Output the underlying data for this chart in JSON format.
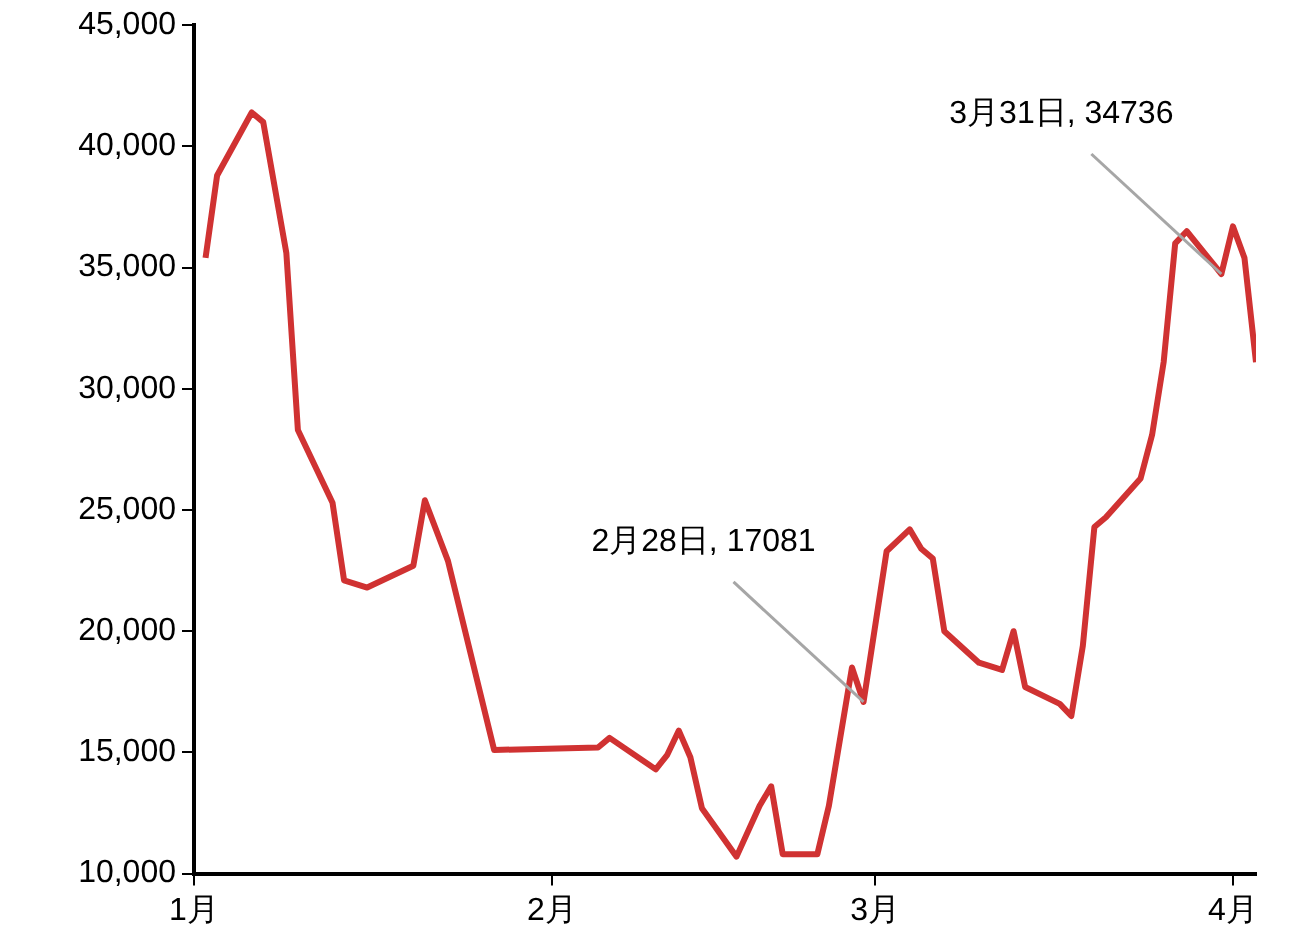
{
  "chart_data": {
    "type": "line",
    "x": [
      "--01-02",
      "--01-03",
      "--01-06",
      "--01-07",
      "--01-09",
      "--01-10",
      "--01-13",
      "--01-14",
      "--01-16",
      "--01-20",
      "--01-21",
      "--01-23",
      "--01-27",
      "--02-05",
      "--02-06",
      "--02-10",
      "--02-11",
      "--02-12",
      "--02-13",
      "--02-14",
      "--02-17",
      "--02-19",
      "--02-20",
      "--02-21",
      "--02-24",
      "--02-25",
      "--02-27",
      "--02-28",
      "--03-02",
      "--03-04",
      "--03-05",
      "--03-06",
      "--03-07",
      "--03-10",
      "--03-12",
      "--03-13",
      "--03-14",
      "--03-17",
      "--03-18",
      "--03-19",
      "--03-20",
      "--03-21",
      "--03-24",
      "--03-25",
      "--03-26",
      "--03-27",
      "--03-28",
      "--03-31",
      "--04-01",
      "--04-02",
      "--04-03"
    ],
    "series": [
      {
        "color": "#d03232",
        "values": [
          35400,
          38800,
          41400,
          41000,
          35600,
          28300,
          25300,
          22100,
          21800,
          22700,
          25400,
          22900,
          15100,
          15200,
          15600,
          14300,
          14900,
          15900,
          14800,
          12700,
          10700,
          12800,
          13600,
          10800,
          10800,
          12800,
          18500,
          17081,
          23300,
          24200,
          23400,
          23000,
          20000,
          18700,
          18400,
          20000,
          17700,
          17000,
          16500,
          19400,
          24300,
          24700,
          26300,
          28100,
          31100,
          36000,
          36500,
          34736,
          36700,
          35400,
          31100
        ]
      }
    ],
    "xlim": [
      "--01-01",
      "--04-03"
    ],
    "xticks": [
      {
        "value": "--01-01",
        "label": "1月"
      },
      {
        "value": "--02-01",
        "label": "2月"
      },
      {
        "value": "--03-01",
        "label": "3月"
      },
      {
        "value": "--04-01",
        "label": "4月"
      }
    ],
    "ylim": [
      10000,
      45000
    ],
    "yticks": [
      {
        "value": 10000,
        "label": "10,000"
      },
      {
        "value": 15000,
        "label": "15,000"
      },
      {
        "value": 20000,
        "label": "20,000"
      },
      {
        "value": 25000,
        "label": "25,000"
      },
      {
        "value": 30000,
        "label": "30,000"
      },
      {
        "value": 35000,
        "label": "35,000"
      },
      {
        "value": 40000,
        "label": "40,000"
      },
      {
        "value": 45000,
        "label": "45,000"
      }
    ],
    "grid": false,
    "legend": false,
    "marker": "none",
    "line_style": "solid",
    "annotations": [
      {
        "text": "2月28日, 17081",
        "x": "--02-28",
        "y": 17081
      },
      {
        "text": "3月31日, 34736",
        "x": "--03-31",
        "y": 34736
      }
    ]
  }
}
